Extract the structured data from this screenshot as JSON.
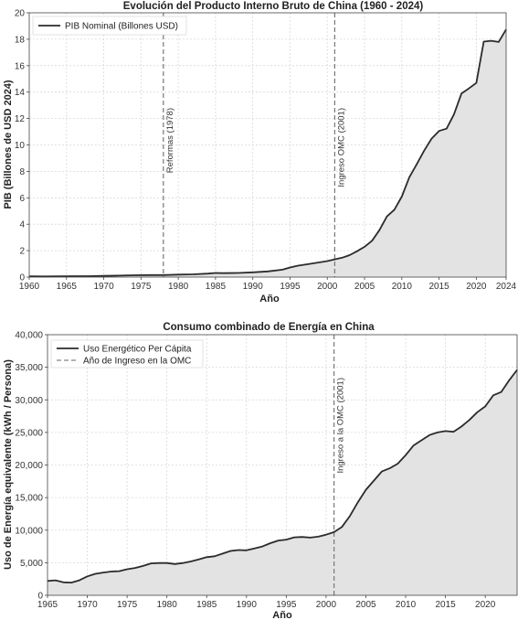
{
  "chart_data": [
    {
      "type": "area",
      "title": "Evolución del Producto Interno Bruto de China (1960 - 2024)",
      "xlabel": "Año",
      "ylabel": "PIB (Billones de USD 2024)",
      "xlim": [
        1960,
        2024
      ],
      "ylim": [
        0,
        20
      ],
      "x_ticks": [
        1960,
        1965,
        1970,
        1975,
        1980,
        1985,
        1990,
        1995,
        2000,
        2005,
        2010,
        2015,
        2020,
        2024
      ],
      "y_ticks": [
        0,
        2,
        4,
        6,
        8,
        10,
        12,
        14,
        16,
        18,
        20
      ],
      "grid": true,
      "legend_position": "top-left",
      "legend": [
        "PIB Nominal (Billones USD)"
      ],
      "series": [
        {
          "name": "PIB Nominal (Billones USD)",
          "x": [
            1960,
            1962,
            1964,
            1966,
            1968,
            1970,
            1972,
            1974,
            1976,
            1978,
            1980,
            1982,
            1984,
            1985,
            1986,
            1988,
            1990,
            1992,
            1994,
            1995,
            1996,
            1998,
            2000,
            2001,
            2002,
            2003,
            2004,
            2005,
            2006,
            2007,
            2008,
            2009,
            2010,
            2011,
            2012,
            2013,
            2014,
            2015,
            2016,
            2017,
            2018,
            2019,
            2020,
            2021,
            2022,
            2023,
            2024
          ],
          "values": [
            0.06,
            0.05,
            0.06,
            0.07,
            0.07,
            0.09,
            0.11,
            0.14,
            0.15,
            0.15,
            0.19,
            0.21,
            0.26,
            0.31,
            0.3,
            0.31,
            0.36,
            0.43,
            0.56,
            0.73,
            0.86,
            1.03,
            1.21,
            1.34,
            1.47,
            1.66,
            1.96,
            2.29,
            2.75,
            3.55,
            4.59,
            5.1,
            6.09,
            7.55,
            8.53,
            9.57,
            10.48,
            11.06,
            11.23,
            12.31,
            13.89,
            14.28,
            14.69,
            17.82,
            17.88,
            17.79,
            18.74
          ]
        }
      ],
      "annotations": [
        {
          "x": 1978,
          "text": "Reformas (1978)"
        },
        {
          "x": 2001,
          "text": "Ingreso OMC (2001)"
        }
      ]
    },
    {
      "type": "area",
      "title": "Consumo combinado de Energía en China",
      "xlabel": "Año",
      "ylabel": "Uso de Energía equivalente (kWh / Persona)",
      "xlim": [
        1965,
        2024
      ],
      "ylim": [
        0,
        40000
      ],
      "x_ticks": [
        1965,
        1970,
        1975,
        1980,
        1985,
        1990,
        1995,
        2000,
        2005,
        2010,
        2015,
        2020
      ],
      "x_tick_labels": [
        "1965",
        "1970",
        "1975",
        "1980",
        "1985",
        "1990",
        "1995",
        "2000",
        "2005",
        "2010",
        "2015",
        "2020"
      ],
      "y_ticks": [
        0,
        5000,
        10000,
        15000,
        20000,
        25000,
        30000,
        35000,
        40000
      ],
      "y_tick_labels": [
        "0",
        "5,000",
        "10,000",
        "15,000",
        "20,000",
        "25,000",
        "30,000",
        "35,000",
        "40,000"
      ],
      "grid": true,
      "legend_position": "top-left",
      "legend": [
        "Uso Energético Per Cápita",
        "Año de Ingreso en la OMC"
      ],
      "series": [
        {
          "name": "Uso Energético Per Cápita",
          "x": [
            1965,
            1966,
            1967,
            1968,
            1969,
            1970,
            1971,
            1972,
            1973,
            1974,
            1975,
            1976,
            1977,
            1978,
            1979,
            1980,
            1981,
            1982,
            1983,
            1984,
            1985,
            1986,
            1987,
            1988,
            1989,
            1990,
            1991,
            1992,
            1993,
            1994,
            1995,
            1996,
            1997,
            1998,
            1999,
            2000,
            2001,
            2002,
            2003,
            2004,
            2005,
            2006,
            2007,
            2008,
            2009,
            2010,
            2011,
            2012,
            2013,
            2014,
            2015,
            2016,
            2017,
            2018,
            2019,
            2020,
            2021,
            2022,
            2023,
            2024
          ],
          "values": [
            2200,
            2300,
            2000,
            1950,
            2300,
            2900,
            3300,
            3500,
            3650,
            3700,
            4000,
            4200,
            4500,
            4900,
            4950,
            4950,
            4800,
            4950,
            5200,
            5500,
            5850,
            6000,
            6400,
            6800,
            6950,
            6900,
            7200,
            7500,
            8000,
            8400,
            8550,
            8900,
            8950,
            8850,
            9000,
            9300,
            9700,
            10500,
            12200,
            14300,
            16200,
            17600,
            19000,
            19500,
            20200,
            21500,
            23000,
            23800,
            24600,
            25000,
            25200,
            25100,
            25900,
            26900,
            28100,
            29000,
            30700,
            31200,
            33000,
            34600
          ]
        }
      ],
      "annotations": [
        {
          "x": 2001,
          "text": "Ingreso a la OMC (2001)"
        }
      ]
    }
  ]
}
